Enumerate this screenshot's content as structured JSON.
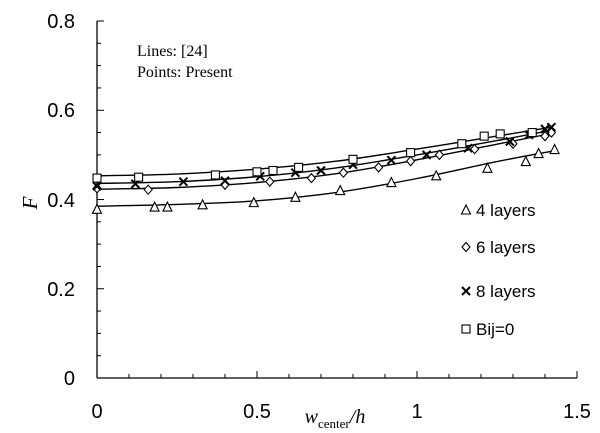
{
  "chart_data": {
    "type": "line",
    "xlabel": "w_center/h",
    "xlabel_main": "w",
    "xlabel_sub": "center",
    "xlabel_tail": "/h",
    "ylabel": "F",
    "xlim": [
      0,
      1.5
    ],
    "ylim": [
      0,
      0.8
    ],
    "x_ticks": [
      "0",
      "0.5",
      "1",
      "1.5"
    ],
    "y_ticks": [
      "0",
      "0.2",
      "0.4",
      "0.6",
      "0.8"
    ],
    "grid": false,
    "legend_position": "right",
    "annotations": [
      "Lines: [24]",
      "Points: Present"
    ],
    "line_color": "#000000",
    "series": [
      {
        "name": "4 layers",
        "marker": "triangle",
        "points": [
          [
            0.0,
            0.378
          ],
          [
            0.18,
            0.383
          ],
          [
            0.22,
            0.383
          ],
          [
            0.33,
            0.388
          ],
          [
            0.49,
            0.393
          ],
          [
            0.62,
            0.405
          ],
          [
            0.76,
            0.42
          ],
          [
            0.92,
            0.438
          ],
          [
            1.06,
            0.453
          ],
          [
            1.22,
            0.47
          ],
          [
            1.34,
            0.485
          ],
          [
            1.38,
            0.503
          ],
          [
            1.43,
            0.512
          ]
        ],
        "line": [
          [
            0.0,
            0.385
          ],
          [
            0.25,
            0.389
          ],
          [
            0.5,
            0.397
          ],
          [
            0.75,
            0.416
          ],
          [
            1.0,
            0.447
          ],
          [
            1.25,
            0.485
          ],
          [
            1.42,
            0.508
          ]
        ]
      },
      {
        "name": "6 layers",
        "marker": "diamond",
        "points": [
          [
            0.0,
            0.425
          ],
          [
            0.16,
            0.422
          ],
          [
            0.4,
            0.433
          ],
          [
            0.54,
            0.44
          ],
          [
            0.67,
            0.448
          ],
          [
            0.77,
            0.46
          ],
          [
            0.88,
            0.472
          ],
          [
            0.98,
            0.486
          ],
          [
            1.07,
            0.5
          ],
          [
            1.18,
            0.513
          ],
          [
            1.3,
            0.525
          ],
          [
            1.4,
            0.542
          ],
          [
            1.42,
            0.55
          ]
        ],
        "line": [
          [
            0.0,
            0.423
          ],
          [
            0.25,
            0.427
          ],
          [
            0.5,
            0.438
          ],
          [
            0.75,
            0.458
          ],
          [
            1.0,
            0.489
          ],
          [
            1.25,
            0.524
          ],
          [
            1.42,
            0.548
          ]
        ]
      },
      {
        "name": "8 layers",
        "marker": "x",
        "points": [
          [
            0.0,
            0.43
          ],
          [
            0.12,
            0.435
          ],
          [
            0.27,
            0.44
          ],
          [
            0.4,
            0.442
          ],
          [
            0.51,
            0.452
          ],
          [
            0.62,
            0.46
          ],
          [
            0.7,
            0.465
          ],
          [
            0.8,
            0.478
          ],
          [
            0.92,
            0.488
          ],
          [
            1.03,
            0.5
          ],
          [
            1.16,
            0.515
          ],
          [
            1.29,
            0.53
          ],
          [
            1.35,
            0.545
          ],
          [
            1.4,
            0.558
          ],
          [
            1.42,
            0.562
          ]
        ],
        "line": [
          [
            0.0,
            0.436
          ],
          [
            0.25,
            0.44
          ],
          [
            0.5,
            0.451
          ],
          [
            0.75,
            0.471
          ],
          [
            1.0,
            0.5
          ],
          [
            1.25,
            0.532
          ],
          [
            1.42,
            0.555
          ]
        ]
      },
      {
        "name": "Bij=0",
        "marker": "square",
        "points": [
          [
            0.0,
            0.448
          ],
          [
            0.13,
            0.45
          ],
          [
            0.37,
            0.455
          ],
          [
            0.5,
            0.462
          ],
          [
            0.55,
            0.465
          ],
          [
            0.63,
            0.472
          ],
          [
            0.8,
            0.49
          ],
          [
            0.98,
            0.505
          ],
          [
            1.14,
            0.525
          ],
          [
            1.21,
            0.542
          ],
          [
            1.26,
            0.547
          ],
          [
            1.36,
            0.55
          ]
        ],
        "line": [
          [
            0.0,
            0.453
          ],
          [
            0.25,
            0.457
          ],
          [
            0.5,
            0.468
          ],
          [
            0.75,
            0.486
          ],
          [
            1.0,
            0.513
          ],
          [
            1.25,
            0.542
          ],
          [
            1.42,
            0.562
          ]
        ]
      }
    ]
  }
}
